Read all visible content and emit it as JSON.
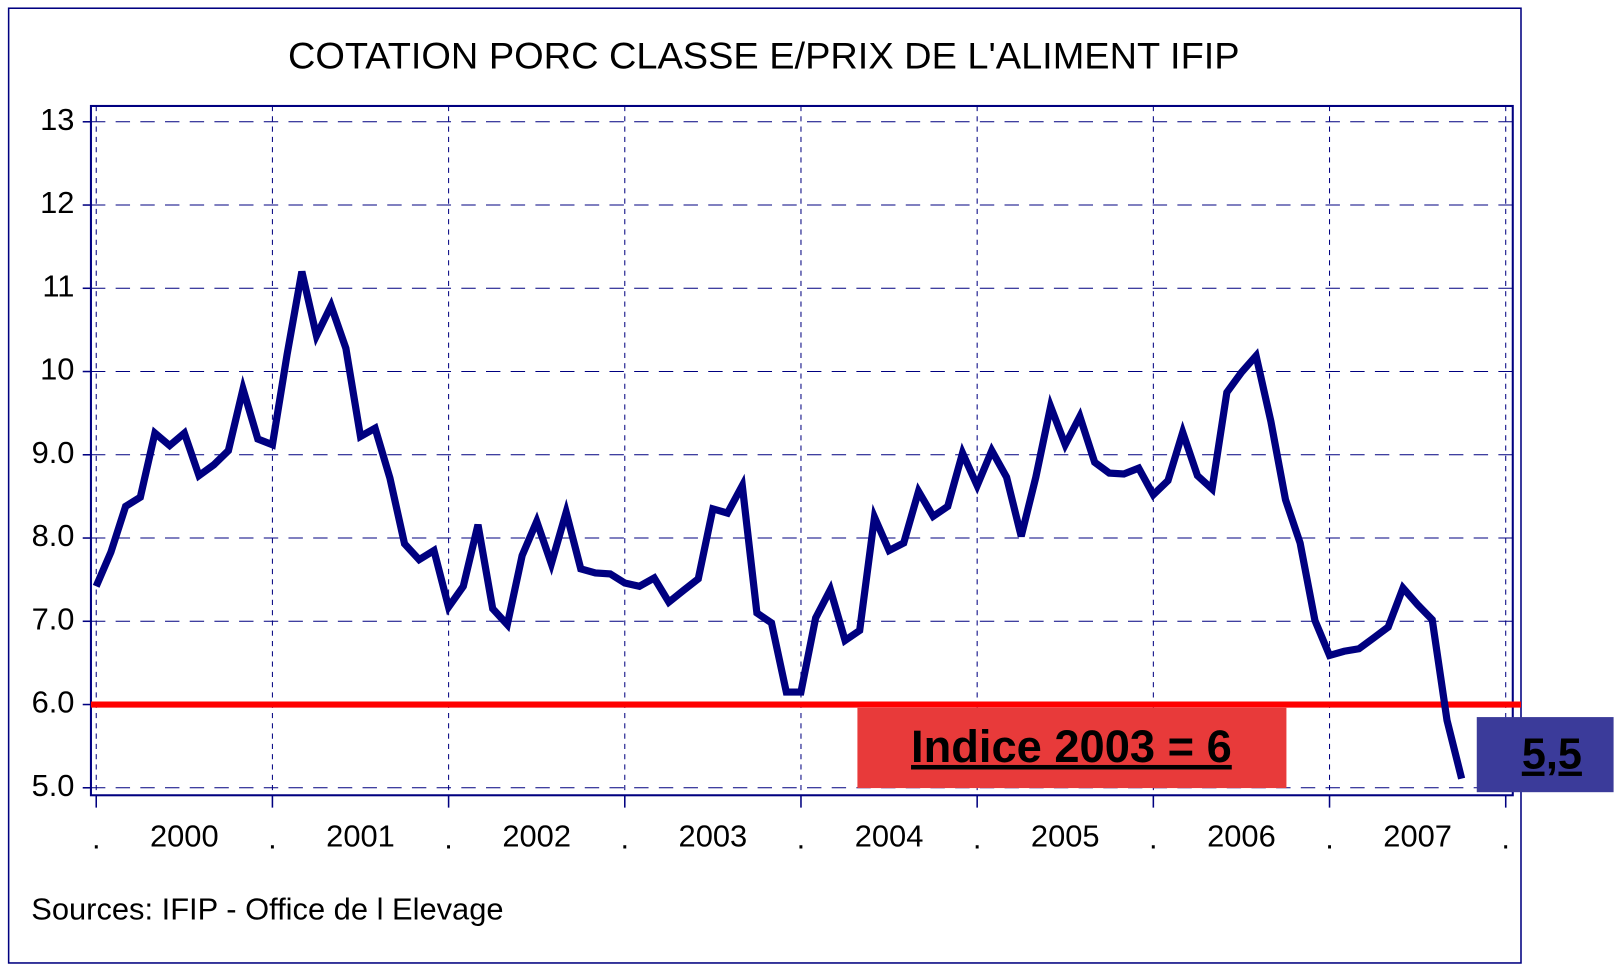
{
  "chart_data": {
    "type": "line",
    "title": "COTATION PORC CLASSE E/PRIX DE L'ALIMENT IFIP",
    "source": "Sources: IFIP - Office de l Elevage",
    "x": [
      2000,
      2000.083,
      2000.167,
      2000.25,
      2000.333,
      2000.417,
      2000.5,
      2000.583,
      2000.667,
      2000.75,
      2000.833,
      2000.917,
      2001,
      2001.083,
      2001.167,
      2001.25,
      2001.333,
      2001.417,
      2001.5,
      2001.583,
      2001.667,
      2001.75,
      2001.833,
      2001.917,
      2002,
      2002.083,
      2002.167,
      2002.25,
      2002.333,
      2002.417,
      2002.5,
      2002.583,
      2002.667,
      2002.75,
      2002.833,
      2002.917,
      2003,
      2003.083,
      2003.167,
      2003.25,
      2003.333,
      2003.417,
      2003.5,
      2003.583,
      2003.667,
      2003.75,
      2003.833,
      2003.917,
      2004,
      2004.083,
      2004.167,
      2004.25,
      2004.333,
      2004.417,
      2004.5,
      2004.583,
      2004.667,
      2004.75,
      2004.833,
      2004.917,
      2005,
      2005.083,
      2005.167,
      2005.25,
      2005.333,
      2005.417,
      2005.5,
      2005.583,
      2005.667,
      2005.75,
      2005.833,
      2005.917,
      2006,
      2006.083,
      2006.167,
      2006.25,
      2006.333,
      2006.417,
      2006.5,
      2006.583,
      2006.667,
      2006.75,
      2006.833,
      2006.917,
      2007,
      2007.083,
      2007.167,
      2007.25,
      2007.333,
      2007.417,
      2007.5,
      2007.583,
      2007.667,
      2007.75
    ],
    "series": [
      {
        "color": "#000080",
        "values": [
          7.42,
          7.83,
          8.38,
          8.49,
          9.26,
          9.11,
          9.26,
          8.75,
          8.88,
          9.05,
          9.79,
          9.19,
          9.12,
          10.2,
          11.2,
          10.43,
          10.79,
          10.28,
          9.22,
          9.32,
          8.72,
          7.93,
          7.74,
          7.85,
          7.17,
          7.42,
          8.16,
          7.15,
          6.96,
          7.79,
          8.2,
          7.69,
          8.31,
          7.63,
          7.58,
          7.57,
          7.46,
          7.42,
          7.52,
          7.23,
          7.37,
          7.51,
          8.35,
          8.3,
          8.63,
          7.1,
          6.98,
          6.15,
          6.15,
          7.04,
          7.38,
          6.77,
          6.89,
          8.25,
          7.85,
          7.94,
          8.56,
          8.26,
          8.38,
          9.02,
          8.63,
          9.05,
          8.73,
          8.02,
          8.73,
          9.58,
          9.12,
          9.46,
          8.91,
          8.78,
          8.77,
          8.84,
          8.52,
          8.69,
          9.27,
          8.75,
          8.59,
          9.75,
          9.99,
          10.19,
          9.4,
          8.46,
          7.94,
          7.01,
          6.59,
          6.64,
          6.67,
          6.8,
          6.93,
          7.4,
          7.2,
          7.02,
          5.81,
          5.11
        ]
      }
    ],
    "xlim": [
      1999.97,
      2008.04
    ],
    "ylim": [
      4.91,
      13.19
    ],
    "yticks": [
      {
        "value": 5,
        "label": "5.0"
      },
      {
        "value": 6,
        "label": "6.0"
      },
      {
        "value": 7,
        "label": "7.0"
      },
      {
        "value": 8,
        "label": "8.0"
      },
      {
        "value": 9,
        "label": "9.0"
      },
      10,
      11,
      12,
      13
    ],
    "xticks": [
      {
        "value": 2000.5,
        "label": "2000"
      },
      {
        "value": 2001.5,
        "label": "2001"
      },
      {
        "value": 2002.5,
        "label": "2002"
      },
      {
        "value": 2003.5,
        "label": "2003"
      },
      {
        "value": 2004.5,
        "label": "2004"
      },
      {
        "value": 2005.5,
        "label": "2005"
      },
      {
        "value": 2006.5,
        "label": "2006"
      },
      {
        "value": 2007.5,
        "label": "2007"
      }
    ],
    "xminorticks": [
      {
        "value": 2000,
        "label": "."
      },
      {
        "value": 2001,
        "label": "."
      },
      {
        "value": 2002,
        "label": "."
      },
      {
        "value": 2003,
        "label": "."
      },
      {
        "value": 2004,
        "label": "."
      },
      {
        "value": 2005,
        "label": "."
      },
      {
        "value": 2006,
        "label": "."
      },
      {
        "value": 2007,
        "label": "."
      },
      {
        "value": 2008,
        "label": "."
      }
    ],
    "grid": true,
    "reference_line": {
      "value": 6,
      "color": "#ff0000",
      "label": "Indice 2003 = 6"
    },
    "annotation": {
      "text": "5,5",
      "color": "#3b3b9a"
    }
  }
}
